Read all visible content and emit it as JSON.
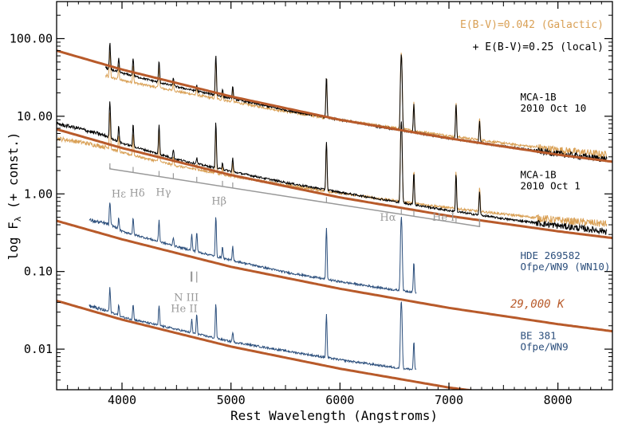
{
  "chart_data": {
    "type": "line",
    "xlabel": "Rest Wavelength (Angstroms)",
    "ylabel": "log F",
    "ylabel_sub": "λ",
    "ylabel_suffix": " (+ const.)",
    "xlim": [
      3400,
      8500
    ],
    "ylim": [
      0.003,
      300
    ],
    "y_scale": "log",
    "x_ticks": [
      4000,
      5000,
      6000,
      7000,
      8000
    ],
    "x_tick_labels": [
      "4000",
      "5000",
      "6000",
      "7000",
      "8000"
    ],
    "y_ticks": [
      0.01,
      0.1,
      1,
      10,
      100
    ],
    "y_tick_labels": [
      "0.01",
      "0.10",
      "1.00",
      "10.00",
      "100.00"
    ],
    "legend": {
      "galactic": {
        "label": "E(B-V)=0.042 (Galactic)",
        "color": "#d9a055"
      },
      "local": {
        "label": "+ E(B-V)=0.25 (local)",
        "color": "#000000"
      }
    },
    "colors": {
      "black": "#000000",
      "tan": "#d9a055",
      "blue": "#2c4f7c",
      "blackbody": "#b85a2a",
      "line_ids": "#999999"
    },
    "blackbody": {
      "label": "29,000 K",
      "curves": [
        {
          "x": [
            3400,
            4000,
            5000,
            6000,
            7000,
            8000,
            8500
          ],
          "y": [
            70,
            40,
            18,
            9.0,
            5.2,
            3.2,
            2.6
          ]
        },
        {
          "x": [
            3400,
            4000,
            5000,
            6000,
            7000,
            8000,
            8500
          ],
          "y": [
            6.8,
            3.9,
            1.75,
            0.9,
            0.52,
            0.33,
            0.27
          ]
        },
        {
          "x": [
            3400,
            4000,
            5000,
            6000,
            7000,
            8000,
            8500
          ],
          "y": [
            0.45,
            0.26,
            0.115,
            0.06,
            0.034,
            0.021,
            0.017
          ]
        },
        {
          "x": [
            3400,
            4000,
            5000,
            6000,
            7000,
            7500
          ],
          "y": [
            0.042,
            0.024,
            0.0108,
            0.0056,
            0.0032,
            0.0026
          ]
        }
      ]
    },
    "spectra": [
      {
        "name": "MCA-1B",
        "date": "2010 Oct 10",
        "label_pos": [
          7450,
          16
        ],
        "dereddened": {
          "x": [
            3850,
            4000,
            4500,
            5000,
            5500,
            6000,
            6500,
            7000,
            7500,
            8000,
            8450
          ],
          "y": [
            42,
            36,
            24,
            17,
            12,
            9.0,
            6.8,
            5.2,
            4.1,
            3.3,
            2.8
          ]
        },
        "galactic": {
          "x": [
            3850,
            4000,
            4500,
            5000,
            5500,
            6000,
            6500,
            7000,
            7500,
            8000,
            8450
          ],
          "y": [
            33,
            29,
            21,
            15.5,
            11.5,
            9.0,
            7.1,
            5.6,
            4.5,
            3.7,
            3.2
          ]
        },
        "lines": [
          {
            "x": 3889,
            "h": 2.1
          },
          {
            "x": 3970,
            "h": 1.5
          },
          {
            "x": 4102,
            "h": 1.7
          },
          {
            "x": 4340,
            "h": 1.9
          },
          {
            "x": 4471,
            "h": 1.3
          },
          {
            "x": 4686,
            "h": 1.2
          },
          {
            "x": 4861,
            "h": 3.3
          },
          {
            "x": 4922,
            "h": 1.25
          },
          {
            "x": 5016,
            "h": 1.45
          },
          {
            "x": 5876,
            "h": 3.3
          },
          {
            "x": 6563,
            "h": 9.5
          },
          {
            "x": 6678,
            "h": 2.3
          },
          {
            "x": 7065,
            "h": 2.8
          },
          {
            "x": 7281,
            "h": 1.9
          }
        ]
      },
      {
        "name": "MCA-1B",
        "date": "2010 Oct 1",
        "label_pos": [
          7450,
          1.6
        ],
        "dereddened": {
          "x": [
            3400,
            3600,
            3850,
            4000,
            4500,
            5000,
            5500,
            6000,
            6500,
            7000,
            7500,
            8000,
            8450
          ],
          "y": [
            8.0,
            7.0,
            5.6,
            4.5,
            2.8,
            1.95,
            1.4,
            1.05,
            0.8,
            0.61,
            0.48,
            0.39,
            0.33
          ]
        },
        "galactic": {
          "x": [
            3400,
            3600,
            3850,
            4000,
            4500,
            5000,
            5500,
            6000,
            6500,
            7000,
            7500,
            8000,
            8450
          ],
          "y": [
            5.2,
            4.7,
            4.0,
            3.4,
            2.3,
            1.7,
            1.3,
            1.02,
            0.82,
            0.66,
            0.55,
            0.46,
            0.41
          ]
        },
        "lines": [
          {
            "x": 3889,
            "h": 3.0
          },
          {
            "x": 3970,
            "h": 1.6
          },
          {
            "x": 4102,
            "h": 1.9
          },
          {
            "x": 4340,
            "h": 2.4
          },
          {
            "x": 4471,
            "h": 1.3
          },
          {
            "x": 4686,
            "h": 1.2
          },
          {
            "x": 4861,
            "h": 3.8
          },
          {
            "x": 4922,
            "h": 1.25
          },
          {
            "x": 5016,
            "h": 1.5
          },
          {
            "x": 5876,
            "h": 4.2
          },
          {
            "x": 6563,
            "h": 11
          },
          {
            "x": 6678,
            "h": 2.6
          },
          {
            "x": 7065,
            "h": 3.0
          },
          {
            "x": 7281,
            "h": 2.0
          }
        ]
      },
      {
        "name": "HDE 269582",
        "date": "Ofpe/WN9 (WN10)",
        "label_pos": [
          7450,
          0.145
        ],
        "dereddened": {
          "x": [
            3700,
            3900,
            4000,
            4500,
            5000,
            5500,
            6000,
            6500,
            6700
          ],
          "y": [
            0.46,
            0.4,
            0.33,
            0.21,
            0.14,
            0.098,
            0.074,
            0.058,
            0.054
          ]
        },
        "lines": [
          {
            "x": 3889,
            "h": 2.0
          },
          {
            "x": 3970,
            "h": 1.4
          },
          {
            "x": 4102,
            "h": 1.6
          },
          {
            "x": 4340,
            "h": 1.9
          },
          {
            "x": 4471,
            "h": 1.3
          },
          {
            "x": 4640,
            "h": 1.6
          },
          {
            "x": 4686,
            "h": 1.8
          },
          {
            "x": 4861,
            "h": 3.2
          },
          {
            "x": 4922,
            "h": 1.4
          },
          {
            "x": 5016,
            "h": 1.5
          },
          {
            "x": 5876,
            "h": 4.5
          },
          {
            "x": 6563,
            "h": 9.0
          },
          {
            "x": 6678,
            "h": 2.4
          }
        ]
      },
      {
        "name": "BE 381",
        "date": "Ofpe/WN9",
        "label_pos": [
          7450,
          0.0135
        ],
        "dereddened": {
          "x": [
            3700,
            3900,
            4000,
            4500,
            5000,
            5500,
            6000,
            6500,
            6700
          ],
          "y": [
            0.036,
            0.03,
            0.026,
            0.018,
            0.0125,
            0.0095,
            0.0073,
            0.0058,
            0.0054
          ]
        },
        "lines": [
          {
            "x": 3889,
            "h": 2.0
          },
          {
            "x": 3970,
            "h": 1.4
          },
          {
            "x": 4102,
            "h": 1.6
          },
          {
            "x": 4340,
            "h": 1.8
          },
          {
            "x": 4640,
            "h": 1.5
          },
          {
            "x": 4686,
            "h": 1.8
          },
          {
            "x": 4861,
            "h": 2.8
          },
          {
            "x": 5016,
            "h": 1.35
          },
          {
            "x": 5876,
            "h": 3.6
          },
          {
            "x": 6563,
            "h": 7.5
          },
          {
            "x": 6678,
            "h": 2.3
          }
        ]
      }
    ],
    "line_ids": {
      "bracket_y": 0.38,
      "bracket_top": 2.2,
      "bracket_x": [
        3889,
        7281
      ],
      "ticks": [
        {
          "x": 3889,
          "top": 2.2
        },
        {
          "x": 4102,
          "top": 2.1
        },
        {
          "x": 4340,
          "top": 2.0
        },
        {
          "x": 4471,
          "top": 1.85
        },
        {
          "x": 4686,
          "top": 1.72
        },
        {
          "x": 4922,
          "top": 1.6
        },
        {
          "x": 5016,
          "top": 1.55
        },
        {
          "x": 5876,
          "top": 0.85
        },
        {
          "x": 6563,
          "top": 0.57
        },
        {
          "x": 6678,
          "top": 0.52
        },
        {
          "x": 7065,
          "top": 0.43
        }
      ],
      "labels": [
        {
          "text": "Hε",
          "x": 3970,
          "y": 0.91
        },
        {
          "text": "Hδ",
          "x": 4140,
          "y": 0.93
        },
        {
          "text": "Hγ",
          "x": 4380,
          "y": 0.95
        },
        {
          "text": "Hβ",
          "x": 4890,
          "y": 0.73
        },
        {
          "text": "Hα",
          "x": 6440,
          "y": 0.45
        },
        {
          "text": "He I",
          "x": 6950,
          "y": 0.45
        },
        {
          "text": "N III",
          "x": 4590,
          "y": 0.042
        },
        {
          "text": "He II",
          "x": 4570,
          "y": 0.03
        }
      ],
      "small_ticks": [
        {
          "x": 4634,
          "y0": 0.1,
          "y1": 0.074
        },
        {
          "x": 4641,
          "y0": 0.1,
          "y1": 0.074
        },
        {
          "x": 4686,
          "y0": 0.1,
          "y1": 0.072
        }
      ]
    }
  }
}
